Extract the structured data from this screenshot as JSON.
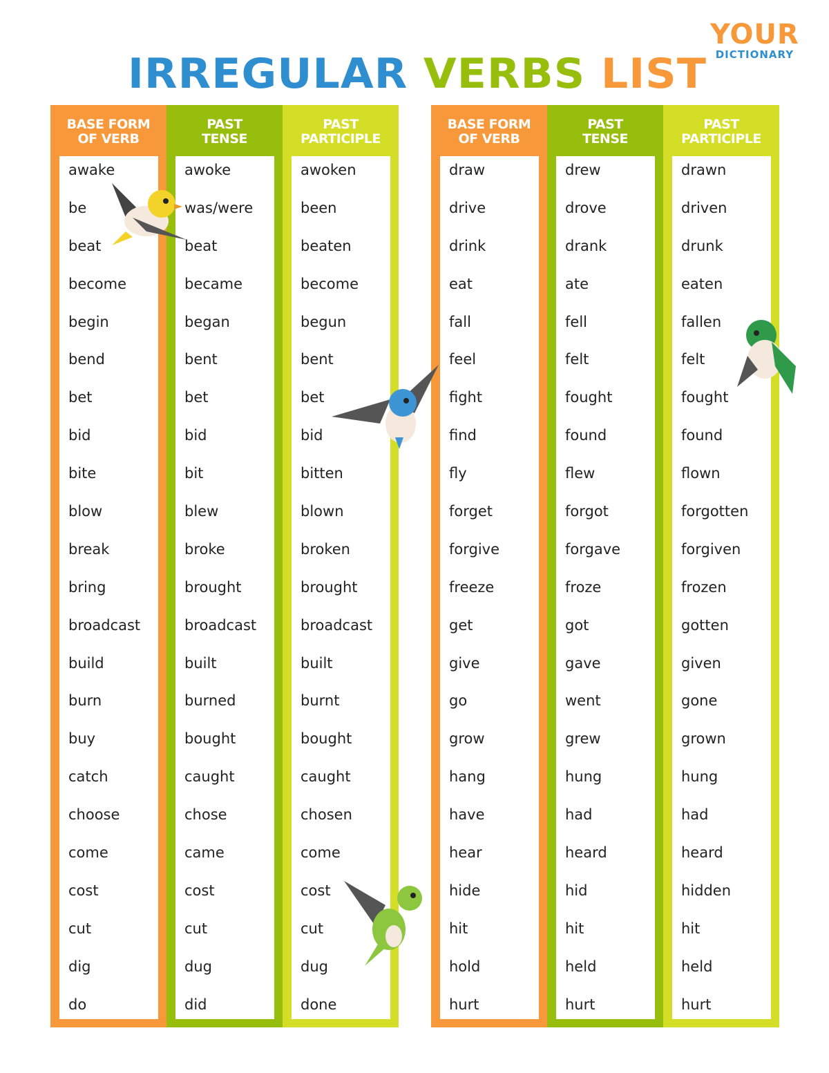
{
  "title": {
    "word1": "IRREGULAR",
    "word2": "VERBS",
    "word3": "LIST"
  },
  "logo": {
    "line1": "YOUR",
    "line2": "DICTIONARY"
  },
  "colors": {
    "blue": "#2f8ecf",
    "green": "#97bd0d",
    "orange": "#f7993a",
    "light_green": "#d4de27"
  },
  "tables": [
    {
      "headers": [
        "BASE FORM\nOF VERB",
        "PAST\nTENSE",
        "PAST\nPARTICIPLE"
      ],
      "columns": [
        [
          "awake",
          "be",
          "beat",
          "become",
          "begin",
          "bend",
          "bet",
          "bid",
          "bite",
          "blow",
          "break",
          "bring",
          "broadcast",
          "build",
          "burn",
          "buy",
          "catch",
          "choose",
          "come",
          "cost",
          "cut",
          "dig",
          "do"
        ],
        [
          "awoke",
          "was/were",
          "beat",
          "became",
          "began",
          "bent",
          "bet",
          "bid",
          "bit",
          "blew",
          "broke",
          "brought",
          "broadcast",
          "built",
          "burned",
          "bought",
          "caught",
          "chose",
          "came",
          "cost",
          "cut",
          "dug",
          "did"
        ],
        [
          "awoken",
          "been",
          "beaten",
          "become",
          "begun",
          "bent",
          "bet",
          "bid",
          "bitten",
          "blown",
          "broken",
          "brought",
          "broadcast",
          "built",
          "burnt",
          "bought",
          "caught",
          "chosen",
          "come",
          "cost",
          "cut",
          "dug",
          "done"
        ]
      ]
    },
    {
      "headers": [
        "BASE FORM\nOF VERB",
        "PAST\nTENSE",
        "PAST\nPARTICIPLE"
      ],
      "columns": [
        [
          "draw",
          "drive",
          "drink",
          "eat",
          "fall",
          "feel",
          "fight",
          "find",
          "fly",
          "forget",
          "forgive",
          "freeze",
          "get",
          "give",
          "go",
          "grow",
          "hang",
          "have",
          "hear",
          "hide",
          "hit",
          "hold",
          "hurt"
        ],
        [
          "drew",
          "drove",
          "drank",
          "ate",
          "fell",
          "felt",
          "fought",
          "found",
          "flew",
          "forgot",
          "forgave",
          "froze",
          "got",
          "gave",
          "went",
          "grew",
          "hung",
          "had",
          "heard",
          "hid",
          "hit",
          "held",
          "hurt"
        ],
        [
          "drawn",
          "driven",
          "drunk",
          "eaten",
          "fallen",
          "felt",
          "fought",
          "found",
          "flown",
          "forgotten",
          "forgiven",
          "frozen",
          "gotten",
          "given",
          "gone",
          "grown",
          "hung",
          "had",
          "heard",
          "hidden",
          "hit",
          "held",
          "hurt"
        ]
      ]
    }
  ],
  "decorations": [
    "yellow-bird",
    "blue-bird",
    "green-bird",
    "lime-bird"
  ]
}
